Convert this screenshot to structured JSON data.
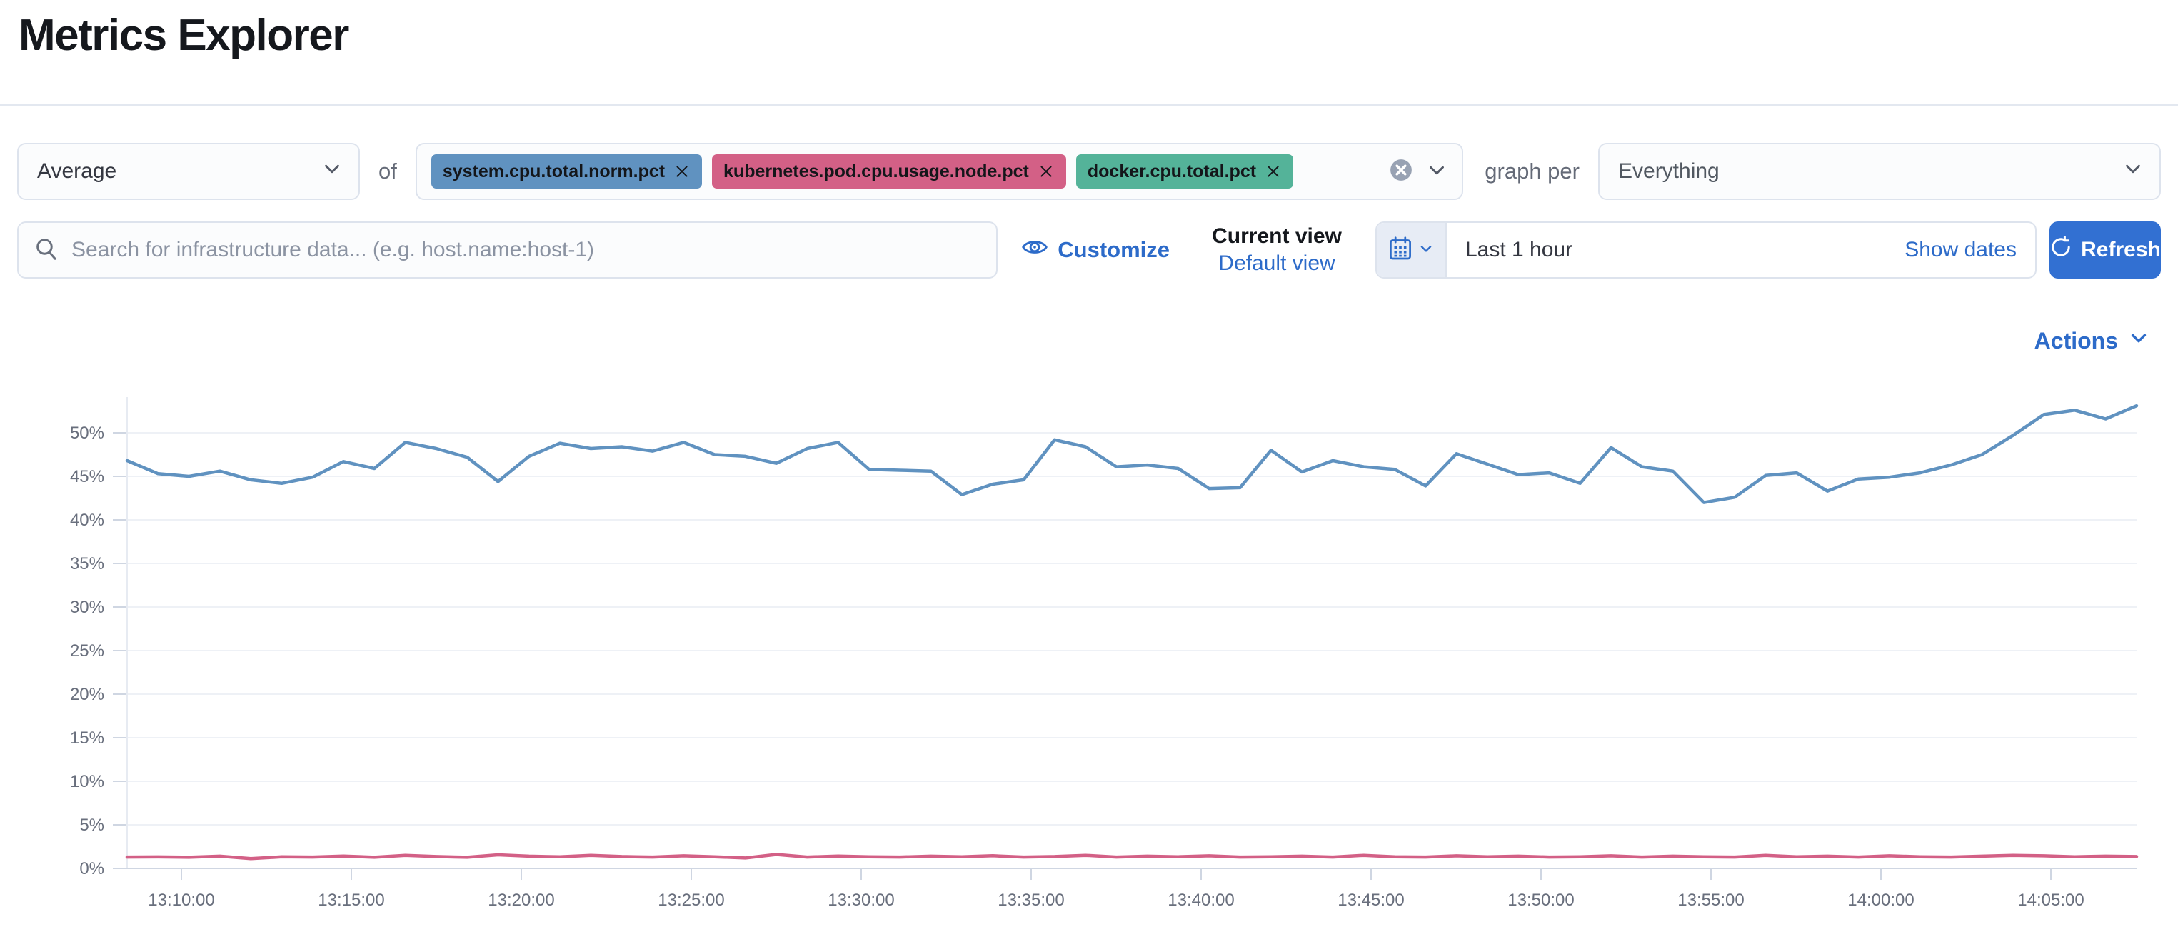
{
  "page": {
    "title": "Metrics Explorer"
  },
  "toolbar": {
    "aggregation_value": "Average",
    "of_label": "of",
    "metrics": [
      {
        "label": "system.cpu.total.norm.pct",
        "color": "#6092C0"
      },
      {
        "label": "kubernetes.pod.cpu.usage.node.pct",
        "color": "#D36086"
      },
      {
        "label": "docker.cpu.total.pct",
        "color": "#54B399"
      }
    ],
    "graph_per_label": "graph per",
    "group_by_value": "Everything"
  },
  "filter_bar": {
    "search_placeholder": "Search for infrastructure data... (e.g. host.name:host-1)",
    "customize_label": "Customize",
    "current_view_label": "Current view",
    "selected_view": "Default view",
    "time_range_value": "Last 1 hour",
    "show_dates_label": "Show dates",
    "refresh_label": "Refresh"
  },
  "actions_label": "Actions",
  "colors": {
    "link_blue": "#2d6bc9",
    "button_blue": "#3270d2",
    "series_blue": "#6092C0",
    "series_pink": "#D36086",
    "series_green": "#54B399"
  },
  "chart_data": {
    "type": "line",
    "title": "",
    "xlabel": "",
    "ylabel": "",
    "x_ticks": [
      "13:10:00",
      "13:15:00",
      "13:20:00",
      "13:25:00",
      "13:30:00",
      "13:35:00",
      "13:40:00",
      "13:45:00",
      "13:50:00",
      "13:55:00",
      "14:00:00",
      "14:05:00"
    ],
    "y_ticks": [
      "0%",
      "5%",
      "10%",
      "15%",
      "20%",
      "25%",
      "30%",
      "35%",
      "40%",
      "45%",
      "50%"
    ],
    "ylim": [
      0,
      55
    ],
    "grid": true,
    "legend_position": "none",
    "series": [
      {
        "name": "system.cpu.total.norm.pct",
        "color": "#6092C0",
        "unit": "%",
        "values": [
          46.8,
          45.3,
          45.0,
          45.6,
          44.6,
          44.2,
          44.9,
          46.7,
          45.9,
          48.9,
          48.2,
          47.2,
          44.4,
          47.3,
          48.8,
          48.2,
          48.4,
          47.9,
          48.9,
          47.5,
          47.3,
          46.5,
          48.2,
          48.9,
          45.8,
          45.7,
          45.6,
          42.9,
          44.1,
          44.6,
          49.2,
          48.4,
          46.1,
          46.3,
          45.9,
          43.6,
          43.7,
          48.0,
          45.5,
          46.8,
          46.1,
          45.8,
          43.9,
          47.6,
          46.4,
          45.2,
          45.4,
          44.2,
          48.3,
          46.1,
          45.6,
          42.0,
          42.6,
          45.1,
          45.4,
          43.3,
          44.7,
          44.9,
          45.4,
          46.3,
          47.5,
          49.7,
          52.1,
          52.6,
          51.6,
          53.1
        ]
      },
      {
        "name": "kubernetes.pod.cpu.usage.node.pct",
        "color": "#D36086",
        "unit": "%",
        "values": [
          1.3,
          1.32,
          1.28,
          1.4,
          1.12,
          1.33,
          1.3,
          1.42,
          1.28,
          1.5,
          1.36,
          1.28,
          1.56,
          1.4,
          1.33,
          1.5,
          1.36,
          1.3,
          1.44,
          1.34,
          1.2,
          1.6,
          1.3,
          1.42,
          1.34,
          1.3,
          1.4,
          1.33,
          1.45,
          1.3,
          1.36,
          1.5,
          1.3,
          1.4,
          1.34,
          1.44,
          1.3,
          1.34,
          1.4,
          1.3,
          1.5,
          1.34,
          1.3,
          1.44,
          1.34,
          1.4,
          1.3,
          1.34,
          1.44,
          1.3,
          1.4,
          1.34,
          1.3,
          1.5,
          1.34,
          1.4,
          1.3,
          1.44,
          1.34,
          1.3,
          1.4,
          1.5,
          1.44,
          1.34,
          1.4,
          1.36
        ]
      }
    ]
  }
}
